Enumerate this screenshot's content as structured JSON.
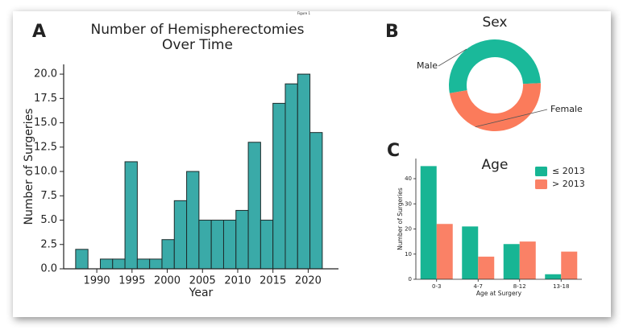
{
  "figure_label": "Figure 1",
  "chart_data": [
    {
      "type": "histogram",
      "panel": "A",
      "title": [
        "Number of Hemispherectomies",
        "Over Time"
      ],
      "x_label": "Year",
      "y_label": "Number of Surgeries",
      "color": "#3aaaa8",
      "bins": [
        1987,
        1988.75,
        1990.5,
        1992.25,
        1994,
        1995.75,
        1997.5,
        1999.25,
        2001,
        2002.75,
        2004.5,
        2006.25,
        2008,
        2009.75,
        2011.5,
        2013.25,
        2015,
        2016.75,
        2018.5,
        2020.25,
        2022
      ],
      "counts": [
        2,
        0,
        1,
        1,
        11,
        1,
        1,
        3,
        7,
        10,
        5,
        5,
        5,
        6,
        13,
        5,
        17,
        19,
        20,
        14
      ],
      "xlim": [
        1985.3,
        2024.3
      ],
      "xticks": [
        1990,
        1995,
        2000,
        2005,
        2010,
        2015,
        2020
      ],
      "ylim": [
        0,
        21
      ],
      "yticks": [
        {
          "value": 0,
          "label": "0.0"
        },
        {
          "value": 2.5,
          "label": "2.5"
        },
        {
          "value": 5,
          "label": "5.0"
        },
        {
          "value": 7.5,
          "label": "7.5"
        },
        {
          "value": 10,
          "label": "10.0"
        },
        {
          "value": 12.5,
          "label": "12.5"
        },
        {
          "value": 15,
          "label": "15.0"
        },
        {
          "value": 17.5,
          "label": "17.5"
        },
        {
          "value": 20,
          "label": "20.0"
        }
      ]
    },
    {
      "type": "donut",
      "panel": "B",
      "title": "Sex",
      "categories": [
        "Male",
        "Female"
      ],
      "values": [
        52,
        48
      ],
      "colors": [
        "#1ab99a",
        "#fb7b5b"
      ]
    },
    {
      "type": "bar",
      "panel": "C",
      "title": "Age",
      "x_label": "Age at Surgery",
      "y_label": "Number of Surgeries",
      "categories": [
        "0-3",
        "4-7",
        "8-12",
        "13-18"
      ],
      "series": [
        {
          "name": "≤ 2013",
          "color": "#17b594",
          "values": [
            45,
            21,
            14,
            2
          ]
        },
        {
          "name": "> 2013",
          "color": "#fa8166",
          "values": [
            22,
            9,
            15,
            11
          ]
        }
      ],
      "ylim": [
        0,
        48
      ],
      "yticks": [
        0,
        10,
        20,
        30,
        40
      ],
      "legend": "upper right"
    }
  ]
}
